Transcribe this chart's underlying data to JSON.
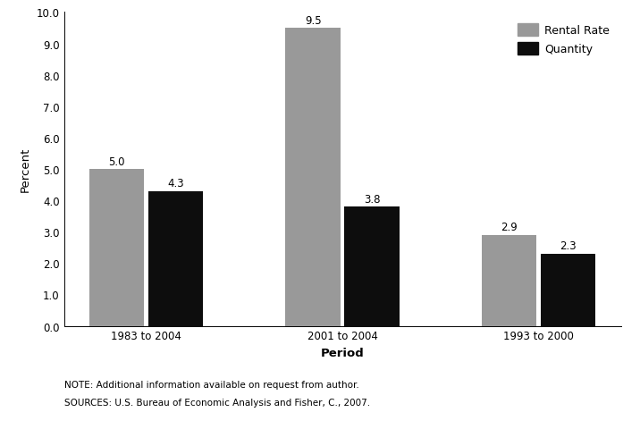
{
  "categories": [
    "1983 to 2004",
    "2001 to 2004",
    "1993 to 2000"
  ],
  "rental_rate": [
    5.0,
    9.5,
    2.9
  ],
  "quantity": [
    4.3,
    3.8,
    2.3
  ],
  "rental_rate_color": "#999999",
  "quantity_color": "#0d0d0d",
  "ylabel": "Percent",
  "xlabel": "Period",
  "ylim": [
    0,
    10.0
  ],
  "yticks": [
    0.0,
    1.0,
    2.0,
    3.0,
    4.0,
    5.0,
    6.0,
    7.0,
    8.0,
    9.0,
    10.0
  ],
  "legend_labels": [
    "Rental Rate",
    "Quantity"
  ],
  "note_line1": "NOTE: Additional information available on request from author.",
  "note_line2": "SOURCES: U.S. Bureau of Economic Analysis and Fisher, C., 2007.",
  "bar_width": 0.28,
  "label_fontsize": 8.5,
  "axis_label_fontsize": 9.5,
  "tick_fontsize": 8.5,
  "legend_fontsize": 9,
  "note_fontsize": 7.5,
  "background_color": "#ffffff"
}
